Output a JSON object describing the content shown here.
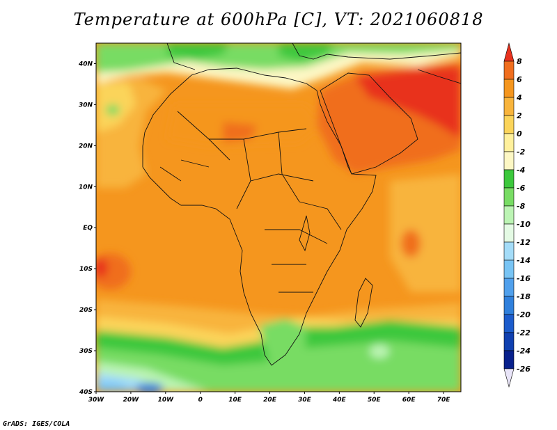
{
  "title": "Temperature at 600hPa [C], VT: 2021060818",
  "credit": "GrADS: IGES/COLA",
  "map": {
    "lat_labels": [
      "40N",
      "30N",
      "20N",
      "10N",
      "EQ",
      "10S",
      "20S",
      "30S",
      "40S"
    ],
    "lon_labels": [
      "30W",
      "20W",
      "10W",
      "0",
      "10E",
      "20E",
      "30E",
      "40E",
      "50E",
      "60E",
      "70E"
    ],
    "lon_range": [
      -30,
      75
    ],
    "lat_range": [
      -40,
      45
    ]
  },
  "colorbar": {
    "labels": [
      "8",
      "6",
      "4",
      "2",
      "0",
      "-2",
      "-4",
      "-6",
      "-8",
      "-10",
      "-12",
      "-14",
      "-16",
      "-18",
      "-20",
      "-22",
      "-24",
      "-26"
    ],
    "colors": [
      "#e8321e",
      "#f06e1e",
      "#f5961e",
      "#f8b43c",
      "#fbd45a",
      "#fff09c",
      "#fdf7c4",
      "#3cc83c",
      "#78dc64",
      "#bcf4b4",
      "#e4fae4",
      "#a4dcf8",
      "#78c4f4",
      "#50a0ec",
      "#3080dc",
      "#1c5ccc",
      "#1040b0",
      "#08208c",
      "#e8e4f8"
    ]
  }
}
